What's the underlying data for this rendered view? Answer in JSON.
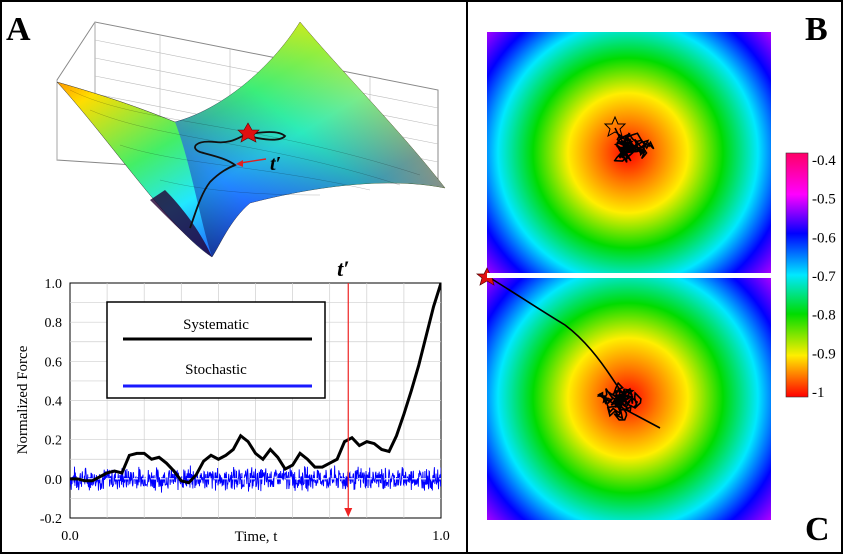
{
  "panels": {
    "a": "A",
    "b": "B",
    "c": "C"
  },
  "surface_annotation": "t′",
  "chart_data": [
    {
      "type": "line",
      "panel": "A",
      "x": [
        0.0,
        0.02,
        0.04,
        0.06,
        0.08,
        0.1,
        0.12,
        0.14,
        0.16,
        0.18,
        0.2,
        0.22,
        0.24,
        0.26,
        0.28,
        0.3,
        0.32,
        0.34,
        0.36,
        0.38,
        0.4,
        0.42,
        0.44,
        0.46,
        0.48,
        0.5,
        0.52,
        0.54,
        0.56,
        0.58,
        0.6,
        0.62,
        0.64,
        0.66,
        0.68,
        0.7,
        0.72,
        0.74,
        0.76,
        0.78,
        0.8,
        0.82,
        0.84,
        0.86,
        0.88,
        0.9,
        0.92,
        0.94,
        0.96,
        0.98,
        1.0
      ],
      "series": [
        {
          "name": "Systematic",
          "color": "#000000",
          "y": [
            0.0,
            0.0,
            -0.01,
            -0.01,
            0.01,
            0.03,
            0.04,
            0.03,
            0.12,
            0.13,
            0.13,
            0.1,
            0.11,
            0.08,
            0.04,
            -0.01,
            -0.02,
            0.02,
            0.09,
            0.12,
            0.1,
            0.12,
            0.15,
            0.22,
            0.19,
            0.13,
            0.1,
            0.15,
            0.11,
            0.05,
            0.07,
            0.13,
            0.1,
            0.06,
            0.06,
            0.08,
            0.1,
            0.19,
            0.21,
            0.17,
            0.19,
            0.18,
            0.15,
            0.14,
            0.22,
            0.33,
            0.45,
            0.58,
            0.73,
            0.88,
            1.0
          ]
        },
        {
          "name": "Stochastic",
          "color": "#0000ff",
          "noise_amplitude": 0.06
        }
      ],
      "xlabel": "Time, t",
      "ylabel": "Normalized Force",
      "xlim": [
        0.0,
        1.0
      ],
      "ylim": [
        -0.2,
        1.0
      ],
      "xticks": [
        "0.0",
        "1.0"
      ],
      "yticks": [
        "-0.2",
        "0.0",
        "0.2",
        "0.4",
        "0.6",
        "0.8",
        "1.0"
      ],
      "marker_x": 0.75,
      "marker_label": "t′",
      "grid": true,
      "legend_position": "top-left",
      "baseline_dashed_y": 0.0
    },
    {
      "type": "heatmap",
      "panel": "B/C",
      "colorscale": [
        "#ff0000",
        "#ff8800",
        "#ffff00",
        "#00e000",
        "#00e0ff",
        "#0000ff",
        "#ff00ff",
        "#ff0066"
      ],
      "colorbar_ticks": [
        "-0.4",
        "-0.5",
        "-0.6",
        "-0.7",
        "-0.8",
        "-0.9",
        "-1"
      ],
      "range": [
        -1,
        -0.4
      ]
    }
  ]
}
